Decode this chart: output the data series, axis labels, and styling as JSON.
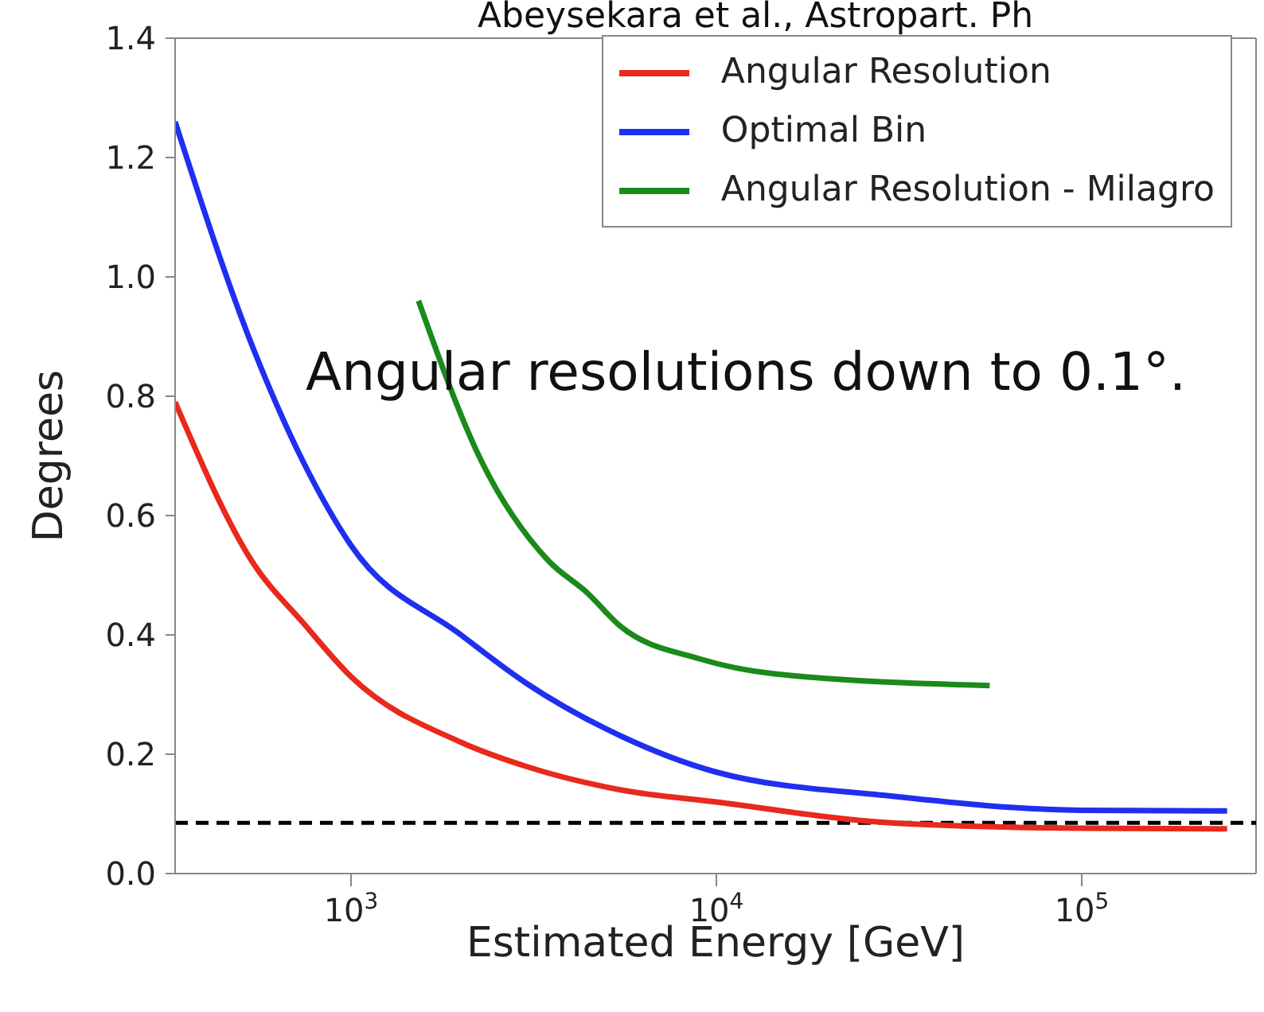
{
  "chart_data": {
    "type": "line",
    "xlabel": "Estimated Energy [GeV]",
    "ylabel": "Degrees",
    "log": "x",
    "xlim": [
      330,
      300000
    ],
    "xticks": [
      {
        "value": 1000,
        "label": "10$^{3}$"
      },
      {
        "value": 10000,
        "label": "10$^{4}$"
      },
      {
        "value": 100000,
        "label": "10$^{5}$"
      }
    ],
    "ylim": [
      0,
      1.4
    ],
    "yticks": [
      {
        "value": 0,
        "label": "0.0"
      },
      0.2,
      0.4,
      0.6,
      0.8,
      {
        "value": 1,
        "label": "1.0"
      },
      1.2,
      1.4
    ],
    "legend": "top right",
    "marker": "none",
    "line_style": "solid",
    "series": [
      {
        "name": "Angular Resolution",
        "color": "#e8291c",
        "x": [
          330,
          540,
          740,
          1000,
          2000,
          3000,
          5500,
          10000,
          30000,
          100000,
          250000
        ],
        "values": [
          0.79,
          0.52,
          0.42,
          0.33,
          0.22,
          0.18,
          0.14,
          0.12,
          0.085,
          0.076,
          0.075
        ]
      },
      {
        "name": "Optimal Bin",
        "color": "#1f2ff0",
        "x": [
          330,
          540,
          740,
          1000,
          2000,
          3000,
          5500,
          10000,
          30000,
          100000,
          250000
        ],
        "values": [
          1.26,
          0.88,
          0.69,
          0.55,
          0.4,
          0.32,
          0.23,
          0.17,
          0.13,
          0.106,
          0.105
        ]
      },
      {
        "name": "Angular Resolution - Milagro",
        "color": "#1a8a1a",
        "x": [
          1530,
          2280,
          3460,
          4440,
          5450,
          8980,
          14300,
          56000
        ],
        "values": [
          0.96,
          0.69,
          0.525,
          0.47,
          0.415,
          0.36,
          0.335,
          0.315
        ]
      }
    ],
    "ref_lines": [
      {
        "axis": "y",
        "value": 0.085,
        "color": "#000000",
        "line_style": "dashed"
      }
    ],
    "annotations": [
      "Abeysekara et al., Astropart. Ph",
      "Angular resolutions down to 0.1°."
    ]
  }
}
